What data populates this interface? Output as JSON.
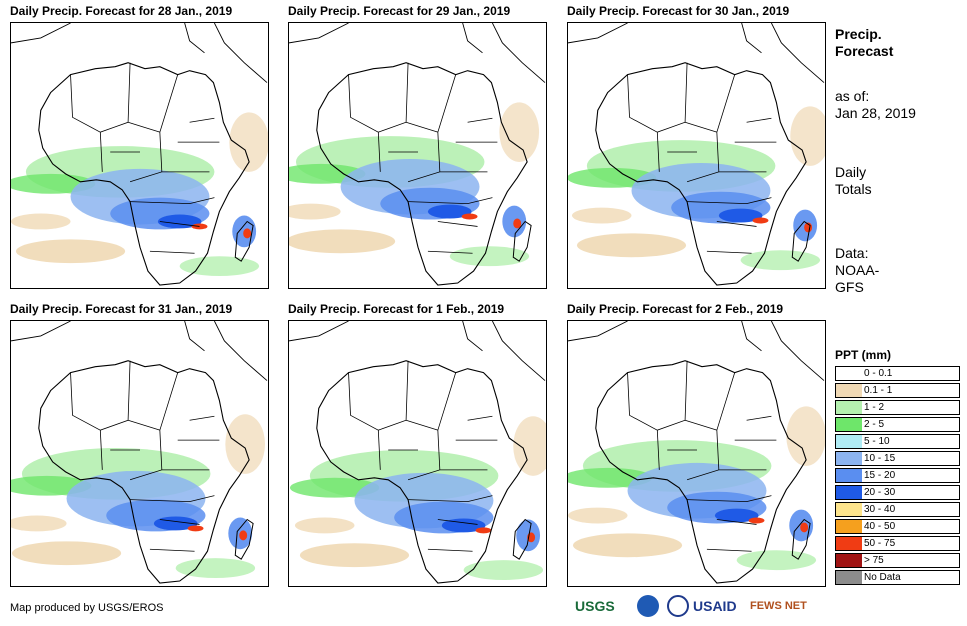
{
  "panels": [
    {
      "title": "Daily Precip. Forecast for 28 Jan., 2019"
    },
    {
      "title": "Daily Precip. Forecast for 29 Jan., 2019"
    },
    {
      "title": "Daily Precip. Forecast for 30 Jan., 2019"
    },
    {
      "title": "Daily Precip. Forecast for 31 Jan., 2019"
    },
    {
      "title": "Daily Precip. Forecast for 1 Feb., 2019"
    },
    {
      "title": "Daily Precip. Forecast for 2 Feb., 2019"
    }
  ],
  "sidebar": {
    "title_line1": "Precip.",
    "title_line2": "Forecast",
    "asof_label": "as of:",
    "asof_date": "Jan 28, 2019",
    "totals_line1": "Daily",
    "totals_line2": "Totals",
    "data_line1": "Data:",
    "data_line2": "NOAA-",
    "data_line3": "GFS"
  },
  "legend": {
    "title": "PPT (mm)",
    "items": [
      {
        "label": "0 - 0.1",
        "color": "#ffffff"
      },
      {
        "label": "0.1 - 1",
        "color": "#f0d9b5"
      },
      {
        "label": "1 - 2",
        "color": "#b5f0b0"
      },
      {
        "label": "2 - 5",
        "color": "#6ee66a"
      },
      {
        "label": "5 - 10",
        "color": "#b0ecf5"
      },
      {
        "label": "10 - 15",
        "color": "#8cb4f0"
      },
      {
        "label": "15 - 20",
        "color": "#5a8ef0"
      },
      {
        "label": "20 - 30",
        "color": "#1f5ae6"
      },
      {
        "label": "30 - 40",
        "color": "#fde48c"
      },
      {
        "label": "40 - 50",
        "color": "#f5a01e"
      },
      {
        "label": "50 - 75",
        "color": "#f03c14"
      },
      {
        "label": "> 75",
        "color": "#a01414"
      },
      {
        "label": "No Data",
        "color": "#8c8c8c"
      }
    ]
  },
  "footer": {
    "credit": "Map produced by USGS/EROS",
    "logos": {
      "usgs": "USGS",
      "usaid": "USAID",
      "fews": "FEWS NET"
    }
  }
}
